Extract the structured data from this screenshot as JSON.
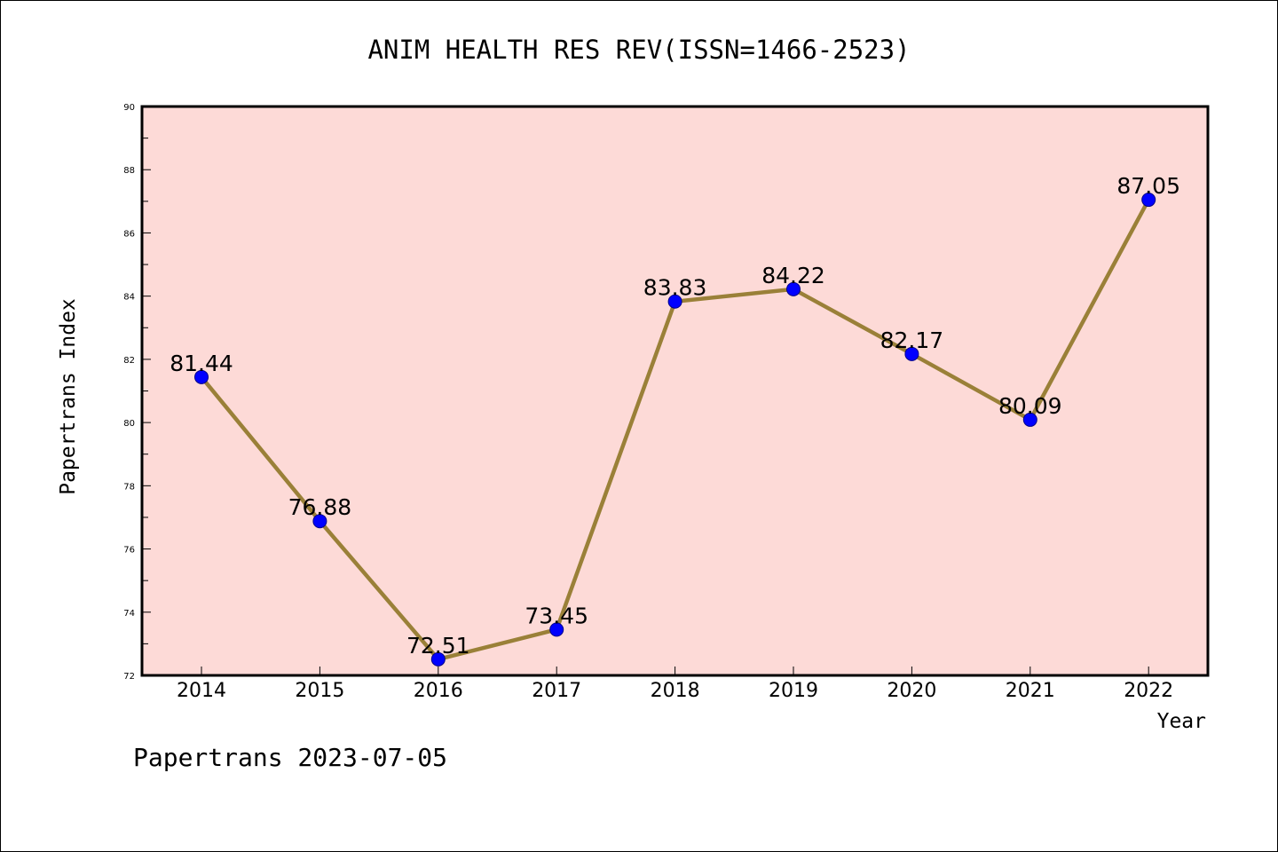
{
  "chart_data": {
    "type": "line",
    "title": "ANIM HEALTH RES REV(ISSN=1466-2523)",
    "xlabel": "Year",
    "ylabel": "Papertrans Index",
    "categories": [
      "2014",
      "2015",
      "2016",
      "2017",
      "2018",
      "2019",
      "2020",
      "2021",
      "2022"
    ],
    "values": [
      81.44,
      76.88,
      72.51,
      73.45,
      83.83,
      84.22,
      82.17,
      80.09,
      87.05
    ],
    "data_labels": [
      "81.44",
      "76.88",
      "72.51",
      "73.45",
      "83.83",
      "84.22",
      "82.17",
      "80.09",
      "87.05"
    ],
    "ylim": [
      72,
      90
    ],
    "yticks": [
      "72",
      "74",
      "76",
      "78",
      "80",
      "82",
      "84",
      "86",
      "88",
      "90"
    ],
    "grid": false,
    "colors": {
      "plot_background": "#fddad7",
      "line": "#9a8038",
      "marker": "#0000ff"
    }
  },
  "footer": "Papertrans 2023-07-05"
}
